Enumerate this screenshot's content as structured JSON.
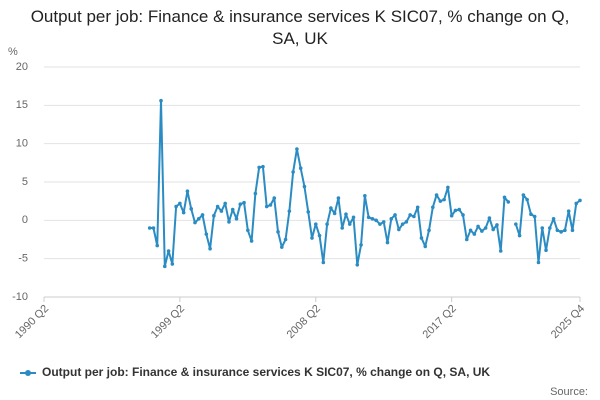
{
  "chart_data": {
    "type": "line",
    "title": "Output per job: Finance & insurance services K SIC07, % change on Q, SA, UK",
    "y_label": "%",
    "source": "Source:",
    "categories": [
      "1990 Q2",
      null,
      null,
      null,
      null,
      null,
      null,
      null,
      null,
      null,
      null,
      null,
      null,
      null,
      null,
      null,
      null,
      null,
      null,
      null,
      null,
      null,
      null,
      null,
      null,
      null,
      null,
      null,
      null,
      null,
      null,
      null,
      null,
      null,
      null,
      null,
      "1999 Q2",
      null,
      null,
      null,
      null,
      null,
      null,
      null,
      null,
      null,
      null,
      null,
      null,
      null,
      null,
      null,
      null,
      null,
      null,
      null,
      null,
      null,
      null,
      null,
      null,
      null,
      null,
      null,
      null,
      null,
      null,
      null,
      null,
      null,
      null,
      null,
      "2008 Q2",
      null,
      null,
      null,
      null,
      null,
      null,
      null,
      null,
      null,
      null,
      null,
      null,
      null,
      null,
      null,
      null,
      null,
      null,
      null,
      null,
      null,
      null,
      null,
      null,
      null,
      null,
      null,
      null,
      null,
      null,
      null,
      null,
      null,
      null,
      null,
      "2017 Q2",
      null,
      null,
      null,
      null,
      null,
      null,
      null,
      null,
      null,
      null,
      null,
      null,
      null,
      null,
      null,
      null,
      null,
      null,
      null,
      null,
      null,
      null,
      null,
      null,
      null,
      null,
      null,
      null,
      null,
      null,
      null,
      null,
      null,
      "2025 Q4"
    ],
    "series": [
      {
        "name": "Output per job: Finance & insurance services K SIC07, % change on Q, SA, UK",
        "color": "#2b8cc4",
        "values": [
          null,
          null,
          null,
          null,
          null,
          null,
          null,
          null,
          null,
          null,
          null,
          null,
          null,
          null,
          null,
          null,
          null,
          null,
          null,
          null,
          null,
          null,
          null,
          null,
          null,
          null,
          null,
          null,
          -1,
          -1,
          -3.3,
          15.6,
          -6,
          -4,
          -5.7,
          1.8,
          2.2,
          1,
          3.8,
          1.5,
          -0.3,
          0.2,
          0.7,
          -1.8,
          -3.7,
          0.6,
          1.8,
          1.2,
          2.2,
          -0.2,
          1.4,
          0.2,
          2.1,
          2.3,
          -1.3,
          -2.7,
          3.5,
          6.9,
          7.0,
          1.8,
          2.0,
          2.9,
          -1.5,
          -3.5,
          -2.5,
          1.2,
          6.3,
          9.3,
          6.8,
          4.4,
          1.1,
          -2.3,
          -0.5,
          -2.0,
          -5.5,
          -0.5,
          1.6,
          0.9,
          2.9,
          -1.0,
          0.8,
          -0.5,
          0.4,
          -5.8,
          -3.2,
          3.2,
          0.4,
          0.2,
          0,
          -0.5,
          -0.2,
          -2.9,
          0.2,
          0.7,
          -1.2,
          -0.5,
          -0.2,
          0.7,
          0.5,
          1.7,
          -2.3,
          -3.4,
          -1.3,
          1.7,
          3.3,
          2.5,
          2.7,
          4.3,
          0.6,
          1.3,
          1.4,
          0.7,
          -2.5,
          -1.3,
          -1.8,
          -0.8,
          -1.4,
          -1.0,
          0.3,
          -1.2,
          -0.6,
          -4.0,
          3.0,
          2.4,
          null,
          -0.5,
          -2.0,
          3.3,
          2.7,
          0.8,
          0.5,
          -5.5,
          -1.0,
          -3.9,
          -1.0,
          0.2,
          -1.3,
          -1.5,
          -1.3,
          1.2,
          -1.3,
          2.2,
          2.6
        ]
      }
    ],
    "ylim": [
      -10,
      20
    ],
    "yticks": [
      -10,
      -5,
      0,
      5,
      10,
      15,
      20
    ],
    "grid": true
  }
}
